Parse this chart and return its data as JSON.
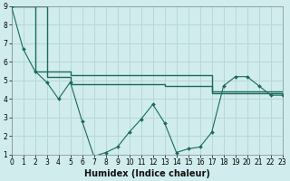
{
  "xlabel": "Humidex (Indice chaleur)",
  "background_color": "#d0ecec",
  "grid_color": "#b8d8d8",
  "line_color": "#1a6b5a",
  "x_line1": [
    0,
    1,
    2,
    3,
    4,
    5,
    6,
    7,
    8,
    9,
    10,
    11,
    12,
    13,
    14,
    15,
    16,
    17,
    18,
    19,
    20,
    21,
    22,
    23
  ],
  "y_line1": [
    9.0,
    6.7,
    5.5,
    4.9,
    4.0,
    4.9,
    2.8,
    0.9,
    1.1,
    1.4,
    2.2,
    2.9,
    3.7,
    2.7,
    1.1,
    1.3,
    1.4,
    2.2,
    4.7,
    5.2,
    5.2,
    4.7,
    4.2,
    4.2
  ],
  "x_line2": [
    0,
    2,
    5,
    13,
    17,
    23
  ],
  "y_line2": [
    9.0,
    5.5,
    5.3,
    5.3,
    4.4,
    4.4
  ],
  "x_line3": [
    0,
    3,
    5,
    13,
    17,
    21,
    23
  ],
  "y_line3": [
    9.0,
    5.2,
    4.8,
    4.7,
    4.3,
    4.3,
    4.3
  ],
  "ylim": [
    1,
    9
  ],
  "xlim": [
    0,
    23
  ],
  "yticks": [
    1,
    2,
    3,
    4,
    5,
    6,
    7,
    8,
    9
  ],
  "xticks": [
    0,
    1,
    2,
    3,
    4,
    5,
    6,
    7,
    8,
    9,
    10,
    11,
    12,
    13,
    14,
    15,
    16,
    17,
    18,
    19,
    20,
    21,
    22,
    23
  ],
  "xlabel_fontsize": 7.0,
  "tick_fontsize": 5.5
}
